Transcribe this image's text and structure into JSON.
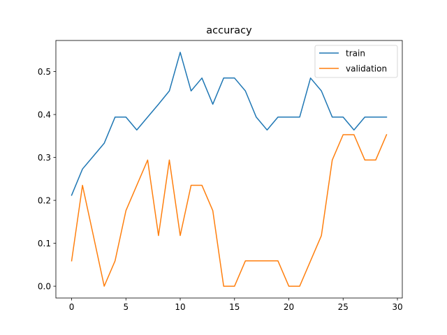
{
  "chart_data": {
    "type": "line",
    "title": "accuracy",
    "xlabel": "",
    "ylabel": "",
    "xlim": [
      -1.45,
      30.45
    ],
    "ylim": [
      -0.0275,
      0.5725
    ],
    "xticks": [
      0,
      5,
      10,
      15,
      20,
      25,
      30
    ],
    "yticks": [
      0.0,
      0.1,
      0.2,
      0.3,
      0.4,
      0.5
    ],
    "xtick_labels": [
      "0",
      "5",
      "10",
      "15",
      "20",
      "25",
      "30"
    ],
    "ytick_labels": [
      "0.0",
      "0.1",
      "0.2",
      "0.3",
      "0.4",
      "0.5"
    ],
    "grid": false,
    "legend_position": "top-right",
    "x": [
      0,
      1,
      2,
      3,
      4,
      5,
      6,
      7,
      8,
      9,
      10,
      11,
      12,
      13,
      14,
      15,
      16,
      17,
      18,
      19,
      20,
      21,
      22,
      23,
      24,
      25,
      26,
      27,
      28,
      29
    ],
    "series": [
      {
        "name": "train",
        "color": "#1f77b4",
        "values": [
          0.212,
          0.273,
          0.303,
          0.333,
          0.394,
          0.394,
          0.364,
          0.394,
          0.424,
          0.455,
          0.545,
          0.455,
          0.485,
          0.424,
          0.485,
          0.485,
          0.455,
          0.394,
          0.364,
          0.394,
          0.394,
          0.394,
          0.485,
          0.455,
          0.394,
          0.394,
          0.364,
          0.394,
          0.394,
          0.394
        ]
      },
      {
        "name": "validation",
        "color": "#ff7f0e",
        "values": [
          0.059,
          0.235,
          0.118,
          0.0,
          0.059,
          0.176,
          0.235,
          0.294,
          0.118,
          0.294,
          0.118,
          0.235,
          0.235,
          0.176,
          0.0,
          0.0,
          0.059,
          0.059,
          0.059,
          0.059,
          0.0,
          0.0,
          0.059,
          0.118,
          0.294,
          0.353,
          0.353,
          0.294,
          0.294,
          0.353
        ]
      }
    ]
  }
}
